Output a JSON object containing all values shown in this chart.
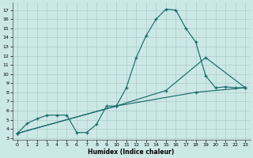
{
  "xlabel": "Humidex (Indice chaleur)",
  "bg_color": "#cce8e6",
  "grid_color": "#aaccca",
  "line_color": "#1a6b6b",
  "xlim": [
    -0.5,
    23.5
  ],
  "ylim": [
    2.8,
    17.8
  ],
  "xticks": [
    0,
    1,
    2,
    3,
    4,
    5,
    6,
    7,
    8,
    9,
    10,
    11,
    12,
    13,
    14,
    15,
    16,
    17,
    18,
    19,
    20,
    21,
    22,
    23
  ],
  "yticks": [
    3,
    4,
    5,
    6,
    7,
    8,
    9,
    10,
    11,
    12,
    13,
    14,
    15,
    16,
    17
  ],
  "curve1_x": [
    0,
    1,
    2,
    3,
    4,
    5,
    6,
    7,
    8,
    9,
    10,
    11,
    12,
    13,
    14,
    15,
    16,
    17,
    18,
    19,
    20,
    21,
    22,
    23
  ],
  "curve1_y": [
    3.5,
    4.6,
    5.1,
    5.5,
    5.5,
    5.5,
    3.6,
    3.6,
    4.5,
    6.5,
    6.5,
    8.5,
    11.8,
    14.2,
    16.0,
    17.1,
    17.0,
    15.0,
    13.5,
    9.8,
    8.5,
    8.6,
    8.5,
    8.5
  ],
  "curve2_x": [
    0,
    10,
    15,
    19,
    23
  ],
  "curve2_y": [
    3.5,
    6.5,
    8.2,
    11.8,
    8.5
  ],
  "curve3_x": [
    0,
    10,
    18,
    23
  ],
  "curve3_y": [
    3.5,
    6.5,
    8.0,
    8.5
  ],
  "figsize": [
    3.2,
    2.0
  ],
  "dpi": 100
}
